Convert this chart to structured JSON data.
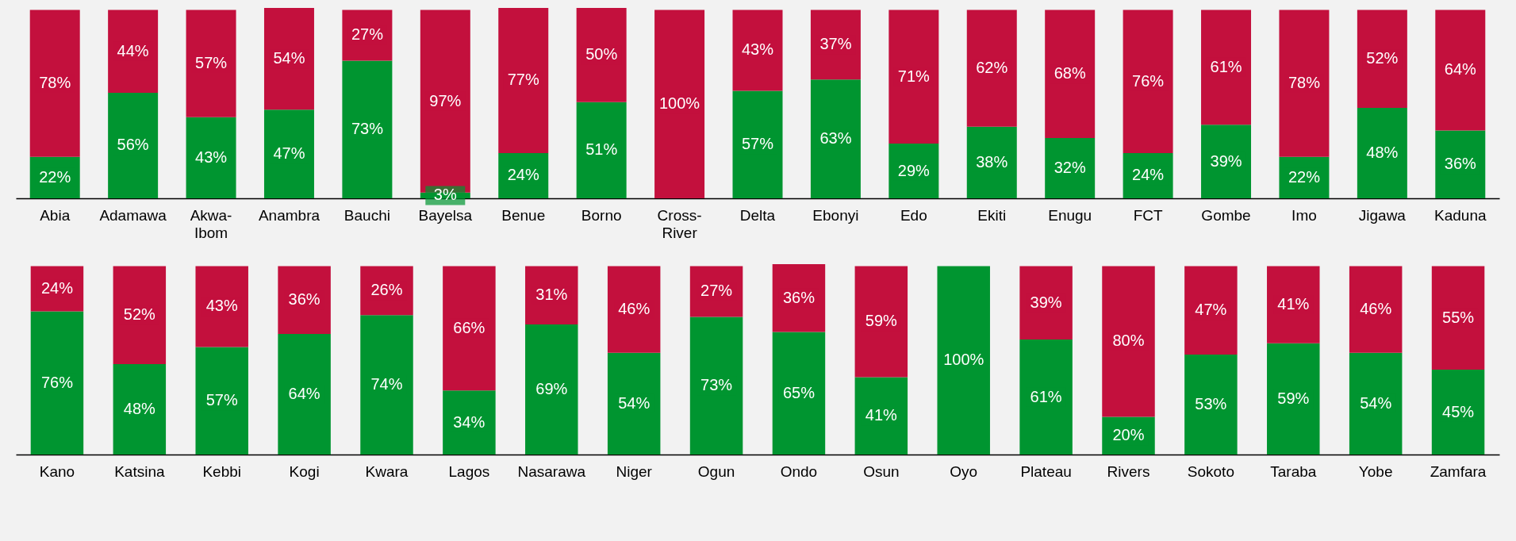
{
  "chart_data": [
    {
      "type": "bar",
      "stacked": true,
      "tick_labels": "x",
      "ylim": [
        0,
        101
      ],
      "categories": [
        "Abia",
        "Adamawa",
        "Akwa-Ibom",
        "Anambra",
        "Bauchi",
        "Bayelsa",
        "Benue",
        "Borno",
        "Cross-River",
        "Delta",
        "Ebonyi",
        "Edo",
        "Ekiti",
        "Enugu",
        "FCT",
        "Gombe",
        "Imo",
        "Jigawa",
        "Kaduna"
      ],
      "series": [
        {
          "color": "#009530",
          "values": [
            22,
            56,
            43,
            47,
            73,
            3,
            24,
            51,
            0,
            57,
            63,
            29,
            38,
            32,
            24,
            39,
            22,
            48,
            36
          ],
          "value_labels": [
            "22%",
            "56%",
            "43%",
            "47%",
            "73%",
            "3%",
            "24%",
            "51%",
            null,
            "57%",
            "63%",
            "29%",
            "38%",
            "32%",
            "24%",
            "39%",
            "22%",
            "48%",
            "36%"
          ]
        },
        {
          "color": "#c3103d",
          "values": [
            78,
            44,
            57,
            54,
            27,
            97,
            77,
            50,
            100,
            43,
            37,
            71,
            62,
            68,
            76,
            61,
            78,
            52,
            64
          ],
          "value_labels": [
            "78%",
            "44%",
            "57%",
            "54%",
            "27%",
            "97%",
            "77%",
            "50%",
            "100%",
            "43%",
            "37%",
            "71%",
            "62%",
            "68%",
            "76%",
            "61%",
            "78%",
            "52%",
            "64%"
          ]
        }
      ]
    },
    {
      "type": "bar",
      "stacked": true,
      "tick_labels": "x",
      "ylim": [
        0,
        101
      ],
      "categories": [
        "Kano",
        "Katsina",
        "Kebbi",
        "Kogi",
        "Kwara",
        "Lagos",
        "Nasarawa",
        "Niger",
        "Ogun",
        "Ondo",
        "Osun",
        "Oyo",
        "Plateau",
        "Rivers",
        "Sokoto",
        "Taraba",
        "Yobe",
        "Zamfara"
      ],
      "series": [
        {
          "color": "#009530",
          "values": [
            76,
            48,
            57,
            64,
            74,
            34,
            69,
            54,
            73,
            65,
            41,
            100,
            61,
            20,
            53,
            59,
            54,
            45
          ],
          "value_labels": [
            "76%",
            "48%",
            "57%",
            "64%",
            "74%",
            "34%",
            "69%",
            "54%",
            "73%",
            "65%",
            "41%",
            "100%",
            "61%",
            "20%",
            "53%",
            "59%",
            "54%",
            "45%"
          ]
        },
        {
          "color": "#c3103d",
          "values": [
            24,
            52,
            43,
            36,
            26,
            66,
            31,
            46,
            27,
            36,
            59,
            0,
            39,
            80,
            47,
            41,
            46,
            55
          ],
          "value_labels": [
            "24%",
            "52%",
            "43%",
            "36%",
            "26%",
            "66%",
            "31%",
            "46%",
            "27%",
            "36%",
            "59%",
            null,
            "39%",
            "80%",
            "47%",
            "41%",
            "46%",
            "55%"
          ]
        }
      ]
    }
  ]
}
